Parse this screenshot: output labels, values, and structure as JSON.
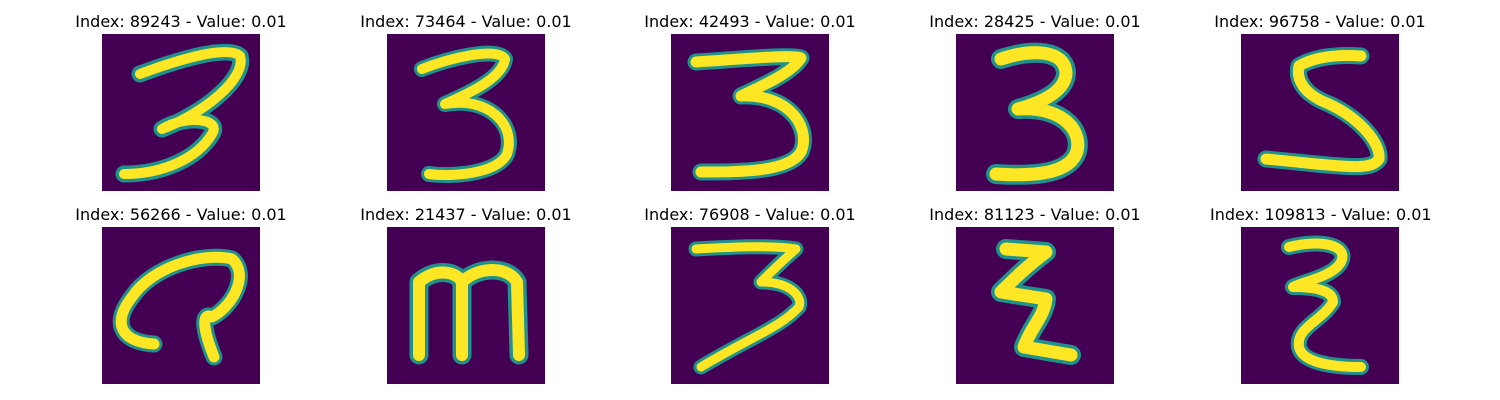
{
  "colors": {
    "background": "#440154",
    "stroke_core": "#fde725",
    "stroke_edge_teal": "#21918c",
    "stroke_edge_green": "#5ec962"
  },
  "panels": [
    {
      "title": "Index: 89243 - Value: 0.01",
      "index": 89243,
      "value": 0.01,
      "depicted_glyph": "3"
    },
    {
      "title": "Index: 73464 - Value: 0.01",
      "index": 73464,
      "value": 0.01,
      "depicted_glyph": "3"
    },
    {
      "title": "Index: 42493 - Value: 0.01",
      "index": 42493,
      "value": 0.01,
      "depicted_glyph": "3"
    },
    {
      "title": "Index: 28425 - Value: 0.01",
      "index": 28425,
      "value": 0.01,
      "depicted_glyph": "3"
    },
    {
      "title": "Index: 96758 - Value: 0.01",
      "index": 96758,
      "value": 0.01,
      "depicted_glyph": "5"
    },
    {
      "title": "Index: 56266 - Value: 0.01",
      "index": 56266,
      "value": 0.01,
      "depicted_glyph": "a"
    },
    {
      "title": "Index: 21437 - Value: 0.01",
      "index": 21437,
      "value": 0.01,
      "depicted_glyph": "m"
    },
    {
      "title": "Index: 76908 - Value: 0.01",
      "index": 76908,
      "value": 0.01,
      "depicted_glyph": "3"
    },
    {
      "title": "Index: 81123 - Value: 0.01",
      "index": 81123,
      "value": 0.01,
      "depicted_glyph": "z"
    },
    {
      "title": "Index: 109813 - Value: 0.01",
      "index": 109813,
      "value": 0.01,
      "depicted_glyph": "3"
    }
  ]
}
